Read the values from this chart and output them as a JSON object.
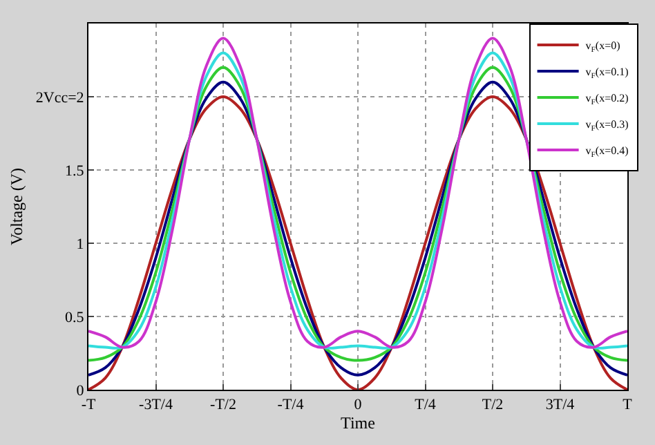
{
  "chart_data": {
    "type": "line",
    "xlabel": "Time",
    "ylabel": "Voltage (V)",
    "categories": [
      "-T",
      null,
      null,
      null,
      "-3T/4",
      null,
      null,
      null,
      "-T/2",
      null,
      null,
      null,
      "-T/4",
      null,
      null,
      null,
      "0",
      null,
      null,
      null,
      "T/4",
      null,
      null,
      null,
      "T/2",
      null,
      null,
      null,
      "3T/4",
      null,
      null,
      null,
      "T"
    ],
    "series": [
      {
        "name": "v$_{F}$(x=0)",
        "color": "#b22222",
        "values": [
          0,
          0.08,
          0.29,
          0.62,
          1,
          1.38,
          1.71,
          1.92,
          2,
          1.92,
          1.71,
          1.38,
          1,
          0.62,
          0.29,
          0.08,
          0,
          0.08,
          0.29,
          0.62,
          1,
          1.38,
          1.71,
          1.92,
          2,
          1.92,
          1.71,
          1.38,
          1,
          0.62,
          0.29,
          0.08,
          0
        ]
      },
      {
        "name": "v$_{F}$(x=0.1)",
        "color": "#000080",
        "values": [
          0.1,
          0.15,
          0.29,
          0.55,
          0.9,
          1.31,
          1.71,
          1.99,
          2.1,
          1.99,
          1.71,
          1.31,
          0.9,
          0.55,
          0.29,
          0.15,
          0.1,
          0.15,
          0.29,
          0.55,
          0.9,
          1.31,
          1.71,
          1.99,
          2.1,
          1.99,
          1.71,
          1.31,
          0.9,
          0.55,
          0.29,
          0.15,
          0.1
        ]
      },
      {
        "name": "v$_{F}$(x=0.2)",
        "color": "#33cc33",
        "values": [
          0.2,
          0.22,
          0.29,
          0.48,
          0.8,
          1.24,
          1.71,
          2.07,
          2.2,
          2.07,
          1.71,
          1.24,
          0.8,
          0.48,
          0.29,
          0.22,
          0.2,
          0.22,
          0.29,
          0.48,
          0.8,
          1.24,
          1.71,
          2.07,
          2.2,
          2.07,
          1.71,
          1.24,
          0.8,
          0.48,
          0.29,
          0.22,
          0.2
        ]
      },
      {
        "name": "v$_{F}$(x=0.3)",
        "color": "#33dddd",
        "values": [
          0.3,
          0.29,
          0.29,
          0.41,
          0.7,
          1.17,
          1.71,
          2.14,
          2.3,
          2.14,
          1.71,
          1.17,
          0.7,
          0.41,
          0.29,
          0.29,
          0.3,
          0.29,
          0.29,
          0.41,
          0.7,
          1.17,
          1.71,
          2.14,
          2.3,
          2.14,
          1.71,
          1.17,
          0.7,
          0.41,
          0.29,
          0.29,
          0.3
        ]
      },
      {
        "name": "v$_{F}$(x=0.4)",
        "color": "#cc33cc",
        "values": [
          0.4,
          0.36,
          0.29,
          0.33,
          0.6,
          1.1,
          1.71,
          2.21,
          2.4,
          2.21,
          1.71,
          1.1,
          0.6,
          0.33,
          0.29,
          0.36,
          0.4,
          0.36,
          0.29,
          0.33,
          0.6,
          1.1,
          1.71,
          2.21,
          2.4,
          2.21,
          1.71,
          1.1,
          0.6,
          0.33,
          0.29,
          0.36,
          0.4
        ]
      }
    ],
    "ylim": [
      0,
      2.5
    ],
    "yticks": [
      0,
      0.5,
      1,
      1.5,
      {
        "value": 2,
        "label": "2Vcc=2"
      }
    ],
    "grid": true,
    "legend": "top right",
    "marker": "none",
    "line_style": "solid"
  }
}
